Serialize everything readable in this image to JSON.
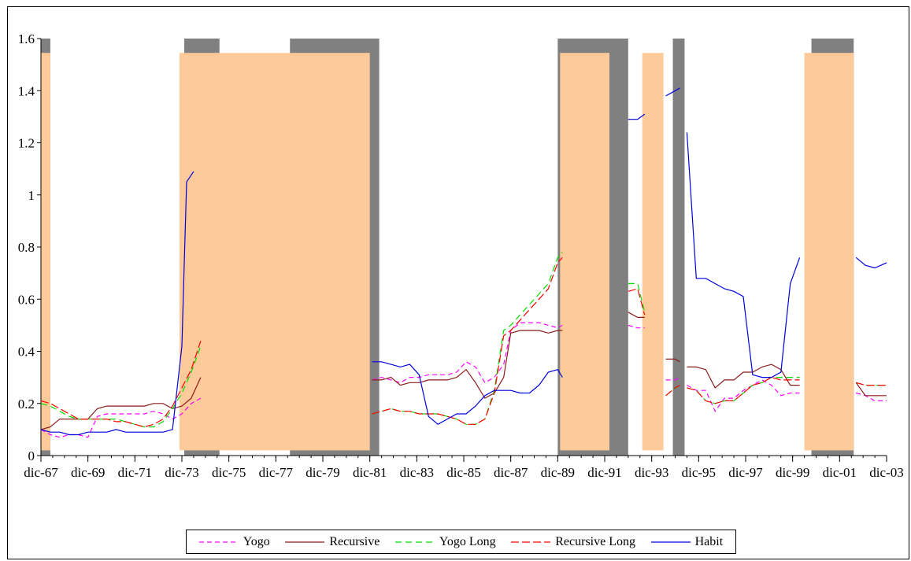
{
  "chart_data": {
    "type": "line",
    "title": "",
    "xlabel": "",
    "ylabel": "",
    "ylim": [
      0,
      1.6
    ],
    "yticks": [
      "0",
      "0.2",
      "0.4",
      "0.6",
      "0.8",
      "1",
      "1.2",
      "1.4",
      "1.6"
    ],
    "xlim": [
      1967.9,
      2003.9
    ],
    "xticks": [
      {
        "label": "dic-67",
        "x": 1967.9
      },
      {
        "label": "dic-69",
        "x": 1969.9
      },
      {
        "label": "dic-71",
        "x": 1971.9
      },
      {
        "label": "dic-73",
        "x": 1973.9
      },
      {
        "label": "dic-75",
        "x": 1975.9
      },
      {
        "label": "dic-77",
        "x": 1977.9
      },
      {
        "label": "dic-79",
        "x": 1979.9
      },
      {
        "label": "dic-81",
        "x": 1981.9
      },
      {
        "label": "dic-83",
        "x": 1983.9
      },
      {
        "label": "dic-85",
        "x": 1985.9
      },
      {
        "label": "dic-87",
        "x": 1987.9
      },
      {
        "label": "dic-89",
        "x": 1989.9
      },
      {
        "label": "dic-91",
        "x": 1991.9
      },
      {
        "label": "dic-93",
        "x": 1993.9
      },
      {
        "label": "dic-95",
        "x": 1995.9
      },
      {
        "label": "dic-97",
        "x": 1997.9
      },
      {
        "label": "dic-99",
        "x": 1999.9
      },
      {
        "label": "dic-01",
        "x": 2001.9
      },
      {
        "label": "dic-03",
        "x": 2003.9
      }
    ],
    "grey_bands": [
      [
        1967.7,
        1968.3
      ],
      [
        1974.0,
        1975.5
      ],
      [
        1978.5,
        1982.3
      ],
      [
        1989.9,
        1992.9
      ],
      [
        1994.8,
        1995.3
      ],
      [
        2000.7,
        2002.5
      ]
    ],
    "orange_bands": [
      [
        1967.7,
        1968.3
      ],
      [
        1973.8,
        1981.9
      ],
      [
        1990.0,
        1992.1
      ],
      [
        1993.5,
        1994.4
      ],
      [
        2000.4,
        2002.5
      ]
    ],
    "orange_top": 1.545,
    "grey_top": 1.6,
    "legend_position": "bottom",
    "series": [
      {
        "name": "Yogo",
        "color": "#ff00ff",
        "dash": "6,4",
        "x": [
          1967.9,
          1968.3,
          1968.7,
          1969.1,
          1969.5,
          1969.9,
          1970.3,
          1970.7,
          1971.1,
          1971.5,
          1971.9,
          1972.3,
          1972.7,
          1973.1,
          1973.5,
          1973.9,
          1974.3,
          1974.7,
          null,
          1982.0,
          1982.4,
          1982.8,
          1983.2,
          1983.6,
          1984.0,
          1984.4,
          1984.8,
          1985.2,
          1985.6,
          1986.0,
          1986.4,
          1986.8,
          1987.2,
          1987.6,
          1987.9,
          1988.3,
          1988.7,
          1989.1,
          1989.5,
          1989.9,
          1990.1,
          null,
          1992.9,
          1993.3,
          1993.6,
          null,
          1994.5,
          1994.9,
          1995.1,
          null,
          1995.4,
          1995.8,
          1996.2,
          1996.6,
          1997.0,
          1997.4,
          1997.8,
          1998.2,
          1998.6,
          1999.0,
          1999.4,
          1999.8,
          2000.2,
          null,
          2002.6,
          2003.0,
          2003.4,
          2003.9
        ],
        "y": [
          0.1,
          0.08,
          0.07,
          0.08,
          0.08,
          0.07,
          0.15,
          0.16,
          0.16,
          0.16,
          0.16,
          0.16,
          0.17,
          0.16,
          0.14,
          0.16,
          0.2,
          0.22,
          null,
          0.29,
          0.3,
          0.29,
          0.28,
          0.3,
          0.3,
          0.31,
          0.31,
          0.31,
          0.32,
          0.36,
          0.34,
          0.28,
          0.3,
          0.35,
          0.48,
          0.51,
          0.51,
          0.51,
          0.5,
          0.49,
          0.5,
          null,
          0.5,
          0.49,
          0.49,
          null,
          0.29,
          0.29,
          0.3,
          null,
          0.27,
          0.25,
          0.25,
          0.17,
          0.22,
          0.22,
          0.25,
          0.27,
          0.29,
          0.27,
          0.23,
          0.24,
          0.24,
          null,
          0.24,
          0.23,
          0.21,
          0.21
        ]
      },
      {
        "name": "Recursive",
        "color": "#8b1a1a",
        "dash": "",
        "x": [
          1967.9,
          1968.3,
          1968.7,
          1969.1,
          1969.5,
          1969.9,
          1970.3,
          1970.7,
          1971.1,
          1971.5,
          1971.9,
          1972.3,
          1972.7,
          1973.1,
          1973.5,
          1973.9,
          1974.3,
          1974.7,
          null,
          1982.0,
          1982.4,
          1982.8,
          1983.2,
          1983.6,
          1984.0,
          1984.4,
          1984.8,
          1985.2,
          1985.6,
          1986.0,
          1986.4,
          1986.8,
          1987.2,
          1987.6,
          1987.9,
          1988.3,
          1988.7,
          1989.1,
          1989.5,
          1989.9,
          1990.1,
          null,
          1992.9,
          1993.3,
          1993.6,
          null,
          1994.5,
          1994.9,
          1995.1,
          null,
          1995.4,
          1995.8,
          1996.2,
          1996.6,
          1997.0,
          1997.4,
          1997.8,
          1998.2,
          1998.6,
          1999.0,
          1999.4,
          1999.8,
          2000.2,
          null,
          2002.6,
          2003.0,
          2003.4,
          2003.9
        ],
        "y": [
          0.1,
          0.11,
          0.14,
          0.14,
          0.14,
          0.14,
          0.18,
          0.19,
          0.19,
          0.19,
          0.19,
          0.19,
          0.2,
          0.2,
          0.18,
          0.19,
          0.22,
          0.3,
          null,
          0.29,
          0.29,
          0.3,
          0.27,
          0.28,
          0.28,
          0.29,
          0.29,
          0.29,
          0.3,
          0.33,
          0.28,
          0.22,
          0.24,
          0.3,
          0.47,
          0.48,
          0.48,
          0.48,
          0.47,
          0.48,
          0.48,
          null,
          0.55,
          0.53,
          0.53,
          null,
          0.37,
          0.37,
          0.36,
          null,
          0.34,
          0.34,
          0.33,
          0.26,
          0.29,
          0.29,
          0.32,
          0.32,
          0.34,
          0.35,
          0.33,
          0.27,
          0.27,
          null,
          0.28,
          0.23,
          0.23,
          0.23
        ]
      },
      {
        "name": "Yogo Long",
        "color": "#00dd00",
        "dash": "8,5",
        "x": [
          1967.9,
          1968.3,
          1968.7,
          1969.1,
          1969.5,
          1969.9,
          1970.3,
          1970.7,
          1971.1,
          1971.5,
          1971.9,
          1972.3,
          1972.7,
          1973.1,
          1973.5,
          1973.9,
          1974.3,
          1974.7,
          null,
          1982.0,
          1982.4,
          1982.8,
          1983.2,
          1983.6,
          1984.0,
          1984.4,
          1984.8,
          1985.2,
          1985.6,
          1986.0,
          1986.4,
          1986.8,
          1987.2,
          1987.6,
          1987.9,
          1988.3,
          1988.7,
          1989.1,
          1989.5,
          1989.9,
          1990.1,
          null,
          1992.9,
          1993.3,
          1993.6,
          null,
          1994.5,
          1994.9,
          1995.1,
          null,
          1995.4,
          1995.8,
          1996.2,
          1996.6,
          1997.0,
          1997.4,
          1997.8,
          1998.2,
          1998.6,
          1999.0,
          1999.4,
          1999.8,
          2000.2,
          null,
          2002.6,
          2003.0,
          2003.4,
          2003.9
        ],
        "y": [
          0.2,
          0.19,
          0.17,
          0.15,
          0.14,
          0.14,
          0.14,
          0.14,
          0.14,
          0.13,
          0.12,
          0.11,
          0.11,
          0.13,
          0.18,
          0.24,
          0.32,
          0.42,
          null,
          0.16,
          0.17,
          0.18,
          0.17,
          0.17,
          0.16,
          0.16,
          0.16,
          0.15,
          0.14,
          0.12,
          0.12,
          0.14,
          0.25,
          0.48,
          0.5,
          0.54,
          0.58,
          0.62,
          0.66,
          0.76,
          0.78,
          null,
          0.66,
          0.66,
          0.55,
          null,
          0.23,
          0.26,
          0.27,
          null,
          0.26,
          0.25,
          0.21,
          0.2,
          0.21,
          0.21,
          0.24,
          0.27,
          0.28,
          0.3,
          0.3,
          0.3,
          0.3,
          null,
          0.28,
          0.27,
          0.27,
          0.27
        ]
      },
      {
        "name": "Recursive Long",
        "color": "#ff0000",
        "dash": "10,4",
        "x": [
          1967.9,
          1968.3,
          1968.7,
          1969.1,
          1969.5,
          1969.9,
          1970.3,
          1970.7,
          1971.1,
          1971.5,
          1971.9,
          1972.3,
          1972.7,
          1973.1,
          1973.5,
          1973.9,
          1974.3,
          1974.7,
          null,
          1982.0,
          1982.4,
          1982.8,
          1983.2,
          1983.6,
          1984.0,
          1984.4,
          1984.8,
          1985.2,
          1985.6,
          1986.0,
          1986.4,
          1986.8,
          1987.2,
          1987.6,
          1987.9,
          1988.3,
          1988.7,
          1989.1,
          1989.5,
          1989.9,
          1990.1,
          null,
          1992.9,
          1993.3,
          1993.6,
          null,
          1994.5,
          1994.9,
          1995.1,
          null,
          1995.4,
          1995.8,
          1996.2,
          1996.6,
          1997.0,
          1997.4,
          1997.8,
          1998.2,
          1998.6,
          1999.0,
          1999.4,
          1999.8,
          2000.2,
          null,
          2002.6,
          2003.0,
          2003.4,
          2003.9
        ],
        "y": [
          0.21,
          0.2,
          0.18,
          0.16,
          0.14,
          0.14,
          0.14,
          0.14,
          0.13,
          0.13,
          0.12,
          0.11,
          0.12,
          0.14,
          0.19,
          0.26,
          0.33,
          0.44,
          null,
          0.16,
          0.17,
          0.18,
          0.17,
          0.17,
          0.16,
          0.16,
          0.16,
          0.15,
          0.14,
          0.12,
          0.12,
          0.14,
          0.24,
          0.46,
          0.48,
          0.52,
          0.56,
          0.6,
          0.64,
          0.74,
          0.76,
          null,
          0.63,
          0.64,
          0.54,
          null,
          0.23,
          0.26,
          0.27,
          null,
          0.26,
          0.25,
          0.21,
          0.2,
          0.21,
          0.21,
          0.24,
          0.27,
          0.28,
          0.3,
          0.29,
          0.29,
          0.29,
          null,
          0.28,
          0.27,
          0.27,
          0.27
        ]
      },
      {
        "name": "Habit",
        "color": "#0000dd",
        "dash": "",
        "x": [
          1967.9,
          1968.3,
          1968.7,
          1969.1,
          1969.5,
          1969.9,
          1970.3,
          1970.7,
          1971.1,
          1971.5,
          1971.9,
          1972.3,
          1972.7,
          1973.1,
          1973.5,
          1973.9,
          1974.1,
          1974.4,
          null,
          1982.0,
          1982.4,
          1982.8,
          1983.2,
          1983.6,
          1984.0,
          1984.4,
          1984.8,
          1985.2,
          1985.6,
          1986.0,
          1986.4,
          1986.8,
          1987.2,
          1987.6,
          1987.9,
          1988.3,
          1988.7,
          1989.1,
          1989.5,
          1989.9,
          1990.1,
          null,
          1992.9,
          1993.3,
          1993.6,
          null,
          1994.5,
          1994.9,
          1995.1,
          null,
          1995.4,
          1995.8,
          1996.2,
          1996.6,
          1997.0,
          1997.4,
          1997.8,
          1998.2,
          1998.6,
          1999.0,
          1999.4,
          1999.8,
          2000.2,
          null,
          2002.6,
          2003.0,
          2003.4,
          2003.9
        ],
        "y": [
          0.1,
          0.09,
          0.09,
          0.08,
          0.08,
          0.09,
          0.09,
          0.09,
          0.1,
          0.09,
          0.09,
          0.09,
          0.09,
          0.09,
          0.1,
          0.42,
          1.05,
          1.09,
          null,
          0.36,
          0.36,
          0.35,
          0.34,
          0.35,
          0.31,
          0.15,
          0.12,
          0.14,
          0.16,
          0.16,
          0.19,
          0.23,
          0.25,
          0.25,
          0.25,
          0.24,
          0.24,
          0.27,
          0.32,
          0.33,
          0.3,
          null,
          1.29,
          1.29,
          1.31,
          null,
          1.38,
          1.4,
          1.41,
          null,
          1.24,
          0.68,
          0.68,
          0.66,
          0.64,
          0.63,
          0.61,
          0.31,
          0.3,
          0.3,
          0.32,
          0.66,
          0.76,
          null,
          0.76,
          0.73,
          0.72,
          0.74
        ]
      }
    ]
  }
}
